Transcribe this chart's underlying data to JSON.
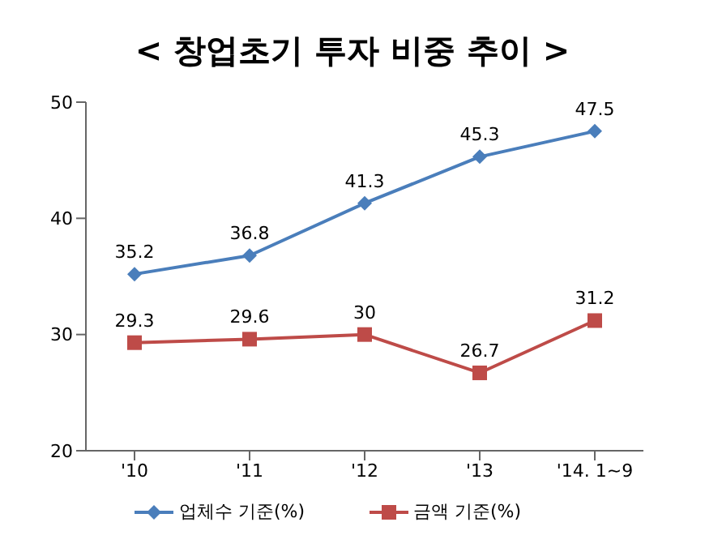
{
  "chart_data": {
    "type": "line",
    "title": "< 창업초기 투자 비중 추이 >",
    "categories": [
      "'10",
      "'11",
      "'12",
      "'13",
      "'14. 1~9"
    ],
    "series": [
      {
        "name": "업체수 기준(%)",
        "color": "#4a7ebb",
        "marker": "diamond",
        "values": [
          35.2,
          36.8,
          41.3,
          45.3,
          47.5
        ]
      },
      {
        "name": "금액 기준(%)",
        "color": "#be4b48",
        "marker": "square",
        "values": [
          29.3,
          29.6,
          30,
          26.7,
          31.2
        ]
      }
    ],
    "ylim": [
      20,
      50
    ],
    "yticks": [
      20,
      30,
      40,
      50
    ],
    "data_labels": true,
    "grid": false,
    "legend": "bottom"
  }
}
